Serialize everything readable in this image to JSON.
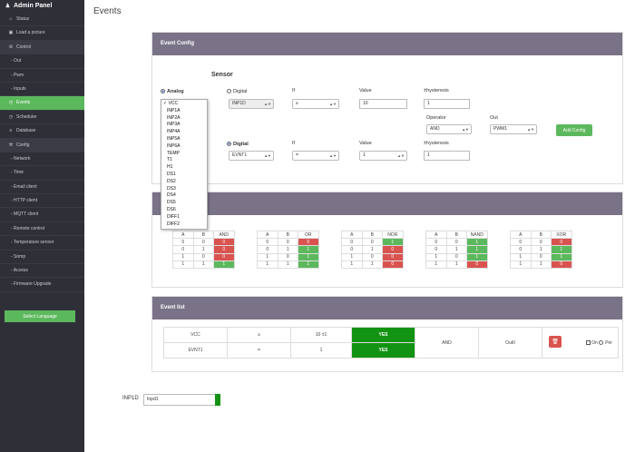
{
  "app": {
    "title": "Admin Panel"
  },
  "sidebar": {
    "items": [
      {
        "label": "Status",
        "icon": "home-icon"
      },
      {
        "label": "Load a picture",
        "icon": "image-icon"
      },
      {
        "label": "Control",
        "icon": "gear-icon",
        "section": true
      },
      {
        "label": "- Out"
      },
      {
        "label": "- Pwm"
      },
      {
        "label": "- Inputs"
      },
      {
        "label": "Events",
        "icon": "clock-icon",
        "active": true
      },
      {
        "label": "Scheduler",
        "icon": "clock-icon"
      },
      {
        "label": "Database",
        "icon": "list-icon"
      },
      {
        "label": "Config",
        "icon": "wrench-icon",
        "section": true
      },
      {
        "label": "- Network"
      },
      {
        "label": "- Time"
      },
      {
        "label": "- Email client"
      },
      {
        "label": "- HTTP client"
      },
      {
        "label": "- MQTT client"
      },
      {
        "label": "- Remote control"
      },
      {
        "label": "- Temperature sensor"
      },
      {
        "label": "- Snmp"
      },
      {
        "label": "- Access"
      },
      {
        "label": "- Firmware Upgrade"
      }
    ],
    "language_button": "Select Language"
  },
  "page": {
    "title": "Events"
  },
  "event_config": {
    "header": "Event Config",
    "sensor_title": "Sensor",
    "row1": {
      "analog_label": "Analog",
      "digital_label": "Digital",
      "digital_value": "INP1D",
      "if_label": "If",
      "if_value": "≥",
      "value_label": "Value",
      "value_value": "10",
      "hysteresis_label": "±hysteresis",
      "hysteresis_value": "1"
    },
    "operator_label": "Operator",
    "operator_value": "AND",
    "out_label": "Out",
    "out_value": "PWM1",
    "add_button": "Add Config",
    "row2": {
      "digital_label": "Digital",
      "digital_value": "EVNT1",
      "if_label": "If",
      "if_value": "=",
      "value_label": "Value",
      "value_value": "1",
      "hysteresis_label": "±hysteresis",
      "hysteresis_value": "1"
    },
    "analog_options": [
      "VCC",
      "INP1A",
      "INP2A",
      "INP3A",
      "INP4A",
      "INP5A",
      "INP6A",
      "TEMP",
      "T1",
      "H1",
      "DS1",
      "DS2",
      "DS3",
      "DS4",
      "DS5",
      "DS6",
      "DIFF1",
      "DIFF2"
    ],
    "analog_selected": "VCC"
  },
  "logic_tables": [
    {
      "op": "AND",
      "rows": [
        [
          0,
          0,
          0
        ],
        [
          0,
          1,
          0
        ],
        [
          1,
          0,
          0
        ],
        [
          1,
          1,
          1
        ]
      ]
    },
    {
      "op": "OR",
      "rows": [
        [
          0,
          0,
          0
        ],
        [
          0,
          1,
          1
        ],
        [
          1,
          0,
          1
        ],
        [
          1,
          1,
          1
        ]
      ]
    },
    {
      "op": "NOR",
      "rows": [
        [
          0,
          0,
          1
        ],
        [
          0,
          1,
          0
        ],
        [
          1,
          0,
          0
        ],
        [
          1,
          1,
          0
        ]
      ]
    },
    {
      "op": "NAND",
      "rows": [
        [
          0,
          0,
          1
        ],
        [
          0,
          1,
          1
        ],
        [
          1,
          0,
          1
        ],
        [
          1,
          1,
          0
        ]
      ]
    },
    {
      "op": "XOR",
      "rows": [
        [
          0,
          0,
          0
        ],
        [
          0,
          1,
          1
        ],
        [
          1,
          0,
          1
        ],
        [
          1,
          1,
          0
        ]
      ]
    }
  ],
  "table_headers": {
    "a": "A",
    "b": "B"
  },
  "event_list": {
    "header": "Event list",
    "rows": [
      {
        "sensor": "VCC",
        "cond": "≥",
        "value": "10 ±1",
        "state": "YES"
      },
      {
        "sensor": "EVNT1",
        "cond": "=",
        "value": "1",
        "state": "YES"
      }
    ],
    "operator": "AND",
    "out": "Out0",
    "on_label": "On",
    "per_label": "Per"
  },
  "input_test": {
    "label": "INP1D",
    "value": "Inpd1"
  },
  "colors": {
    "sidebar": "#2f2f38",
    "active": "#5cb85c",
    "panel_header": "#7a7287",
    "red": "#d9534f",
    "yes": "#139313"
  }
}
